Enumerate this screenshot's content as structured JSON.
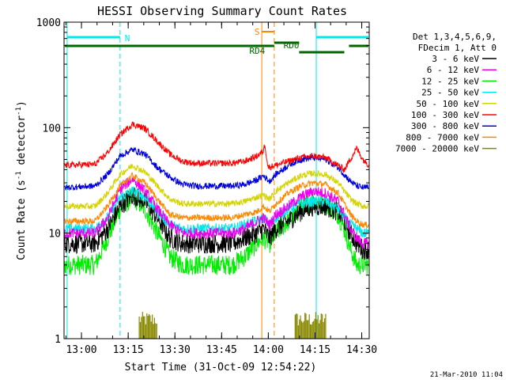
{
  "chart_data": {
    "type": "line",
    "title": "HESSI Observing Summary Count Rates",
    "xlabel": "Start Time (31-Oct-09 12:54:22)",
    "ylabel_main": "Count Rate (s",
    "ylabel_sup1": "-1",
    "ylabel_mid": " detector",
    "ylabel_sup2": "-1",
    "ylabel_end": ")",
    "footer": "21-Mar-2010 11:04",
    "x_unit": "minutes since 12:54:22",
    "xlim": [
      0,
      98
    ],
    "ylim": [
      1,
      1000
    ],
    "yscale": "log",
    "x_ticks": [
      {
        "label": "13:00",
        "value": 5.6
      },
      {
        "label": "13:15",
        "value": 20.6
      },
      {
        "label": "13:30",
        "value": 35.6
      },
      {
        "label": "13:45",
        "value": 50.6
      },
      {
        "label": "14:00",
        "value": 65.6
      },
      {
        "label": "14:15",
        "value": 80.6
      },
      {
        "label": "14:30",
        "value": 95.6
      }
    ],
    "y_ticks": [
      {
        "label": "1",
        "value": 1
      },
      {
        "label": "10",
        "value": 10
      },
      {
        "label": "100",
        "value": 100
      },
      {
        "label": "1000",
        "value": 1000
      }
    ],
    "legend_header": [
      "Det 1,3,4,5,6,9,",
      "FDecim 1, Att 0"
    ],
    "legend_position": "right",
    "series": [
      {
        "name": "3 - 6 keV",
        "color": "#000000",
        "x": [
          0,
          10,
          14,
          18,
          22,
          26,
          30,
          34,
          38,
          42,
          46,
          50,
          54,
          58,
          62,
          64,
          66,
          68,
          72,
          76,
          80,
          84,
          88,
          90,
          92,
          94,
          96,
          98
        ],
        "y": [
          8,
          8,
          11,
          18,
          23,
          20,
          14,
          9,
          8,
          8,
          8,
          8,
          8,
          9,
          10,
          11,
          9,
          11,
          13,
          16,
          18,
          18,
          16,
          13,
          10,
          8,
          7,
          7
        ]
      },
      {
        "name": "6 - 12 keV",
        "color": "#ee00ee",
        "x": [
          0,
          10,
          14,
          18,
          22,
          26,
          30,
          34,
          38,
          42,
          46,
          50,
          54,
          58,
          62,
          64,
          66,
          68,
          72,
          76,
          80,
          84,
          88,
          90,
          92,
          94,
          96,
          98
        ],
        "y": [
          10,
          10,
          14,
          26,
          33,
          25,
          17,
          12,
          10,
          10,
          10,
          10,
          10,
          11,
          13,
          14,
          12,
          15,
          18,
          22,
          25,
          24,
          20,
          15,
          11,
          9,
          8,
          8
        ]
      },
      {
        "name": "12 - 25 keV",
        "color": "#00ee00",
        "x": [
          0,
          10,
          14,
          18,
          22,
          26,
          30,
          34,
          38,
          42,
          46,
          50,
          54,
          58,
          62,
          64,
          66,
          68,
          72,
          76,
          80,
          84,
          88,
          90,
          92,
          94,
          96,
          98
        ],
        "y": [
          5,
          5,
          9,
          17,
          22,
          17,
          10,
          6,
          5,
          5,
          5,
          5,
          5,
          6,
          8,
          9,
          8,
          10,
          13,
          17,
          20,
          19,
          15,
          11,
          7,
          5,
          5,
          5
        ]
      },
      {
        "name": "25 - 50 keV",
        "color": "#00e8e8",
        "x": [
          0,
          10,
          14,
          18,
          22,
          26,
          30,
          34,
          38,
          42,
          46,
          50,
          54,
          58,
          62,
          64,
          66,
          68,
          72,
          76,
          80,
          84,
          88,
          90,
          92,
          94,
          96,
          98
        ],
        "y": [
          11,
          11,
          14,
          22,
          25,
          22,
          16,
          12,
          11,
          11,
          11,
          11,
          11,
          12,
          13,
          14,
          12,
          14,
          17,
          19,
          20,
          20,
          17,
          14,
          12,
          11,
          10,
          10
        ]
      },
      {
        "name": "50 - 100 keV",
        "color": "#d4d400",
        "x": [
          0,
          10,
          14,
          18,
          22,
          26,
          30,
          34,
          38,
          42,
          46,
          50,
          54,
          58,
          62,
          64,
          66,
          68,
          72,
          76,
          80,
          84,
          88,
          90,
          92,
          94,
          96,
          98
        ],
        "y": [
          18,
          18,
          24,
          36,
          44,
          38,
          28,
          21,
          19,
          19,
          19,
          19,
          19,
          20,
          22,
          23,
          21,
          25,
          30,
          35,
          37,
          36,
          30,
          25,
          21,
          19,
          18,
          18
        ]
      },
      {
        "name": "100 - 300 keV",
        "color": "#ff0000",
        "x": [
          0,
          10,
          14,
          18,
          22,
          26,
          30,
          34,
          38,
          42,
          46,
          50,
          54,
          58,
          62,
          64,
          64.5,
          65.5,
          68,
          72,
          76,
          80,
          84,
          88,
          90,
          94,
          95,
          96,
          98
        ],
        "y": [
          44,
          45,
          58,
          86,
          108,
          98,
          74,
          56,
          48,
          46,
          46,
          46,
          46,
          48,
          54,
          60,
          70,
          42,
          44,
          48,
          52,
          54,
          52,
          44,
          40,
          64,
          56,
          50,
          44
        ]
      },
      {
        "name": "300 - 800 keV",
        "color": "#0000dd",
        "x": [
          0,
          10,
          14,
          18,
          22,
          26,
          30,
          34,
          38,
          42,
          46,
          50,
          54,
          58,
          62,
          64,
          66,
          68,
          72,
          76,
          80,
          84,
          88,
          90,
          92,
          94,
          96,
          98
        ],
        "y": [
          27,
          28,
          36,
          54,
          62,
          56,
          42,
          34,
          29,
          28,
          28,
          28,
          28,
          29,
          32,
          35,
          31,
          36,
          44,
          50,
          52,
          50,
          42,
          36,
          31,
          28,
          27,
          27
        ]
      },
      {
        "name": "800 - 7000 keV",
        "color": "#ff8800",
        "x": [
          0,
          10,
          14,
          18,
          22,
          26,
          30,
          34,
          38,
          42,
          46,
          50,
          54,
          58,
          62,
          64,
          66,
          68,
          72,
          76,
          80,
          84,
          88,
          90,
          92,
          94,
          96,
          98
        ],
        "y": [
          13,
          13,
          18,
          28,
          35,
          30,
          21,
          15,
          14,
          14,
          14,
          14,
          14,
          15,
          16,
          18,
          16,
          19,
          24,
          28,
          30,
          29,
          24,
          19,
          15,
          13,
          12,
          12
        ]
      },
      {
        "name": "7000 - 20000 keV",
        "color": "#888800",
        "x": [
          0,
          24,
          24,
          30,
          30,
          74,
          74,
          84,
          84,
          98
        ],
        "y": [
          1,
          1,
          1.8,
          1.8,
          1,
          1,
          1.8,
          1.8,
          1,
          1
        ]
      }
    ],
    "annotations": [
      {
        "label": "N",
        "color": "#00e8e8"
      },
      {
        "label": "S",
        "color": "#ff8800"
      },
      {
        "label": "RD4",
        "color": "#006600"
      },
      {
        "label": "RD0",
        "color": "#006600"
      }
    ]
  }
}
